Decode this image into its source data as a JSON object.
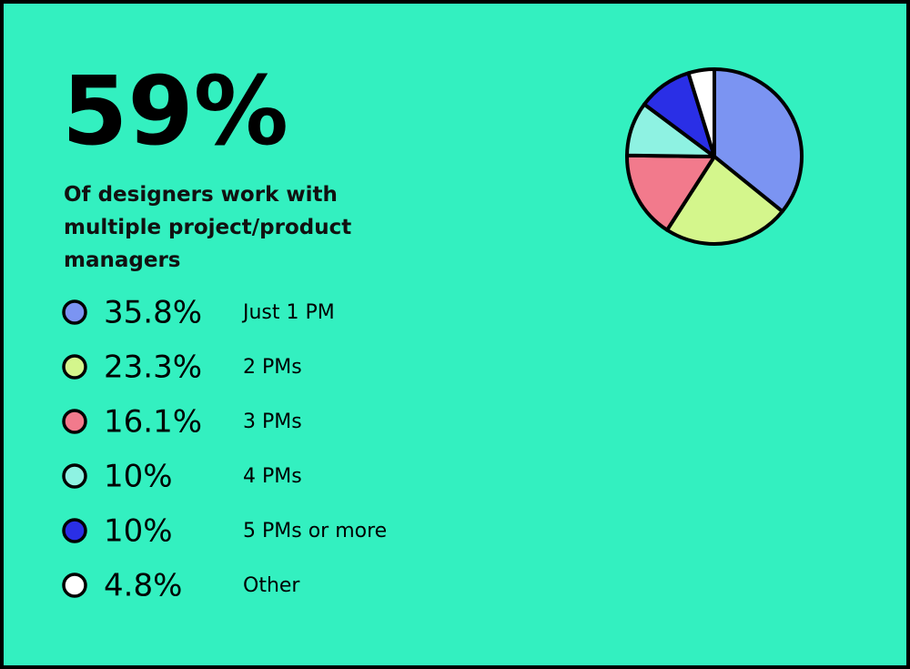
{
  "chart_data": {
    "type": "pie",
    "title": "59%",
    "subtitle": "Of designers work with multiple project/product managers",
    "categories": [
      "Just 1 PM",
      "2 PMs",
      "3 PMs",
      "4 PMs",
      "5 PMs or more",
      "Other"
    ],
    "values": [
      35.8,
      23.3,
      16.1,
      10,
      10,
      4.8
    ],
    "value_labels": [
      "35.8%",
      "23.3%",
      "16.1%",
      "10%",
      "10%",
      "4.8%"
    ],
    "colors": [
      "#7b94f2",
      "#d4f68c",
      "#f27a8c",
      "#8ef2e2",
      "#2a2fe6",
      "#ffffff"
    ]
  }
}
